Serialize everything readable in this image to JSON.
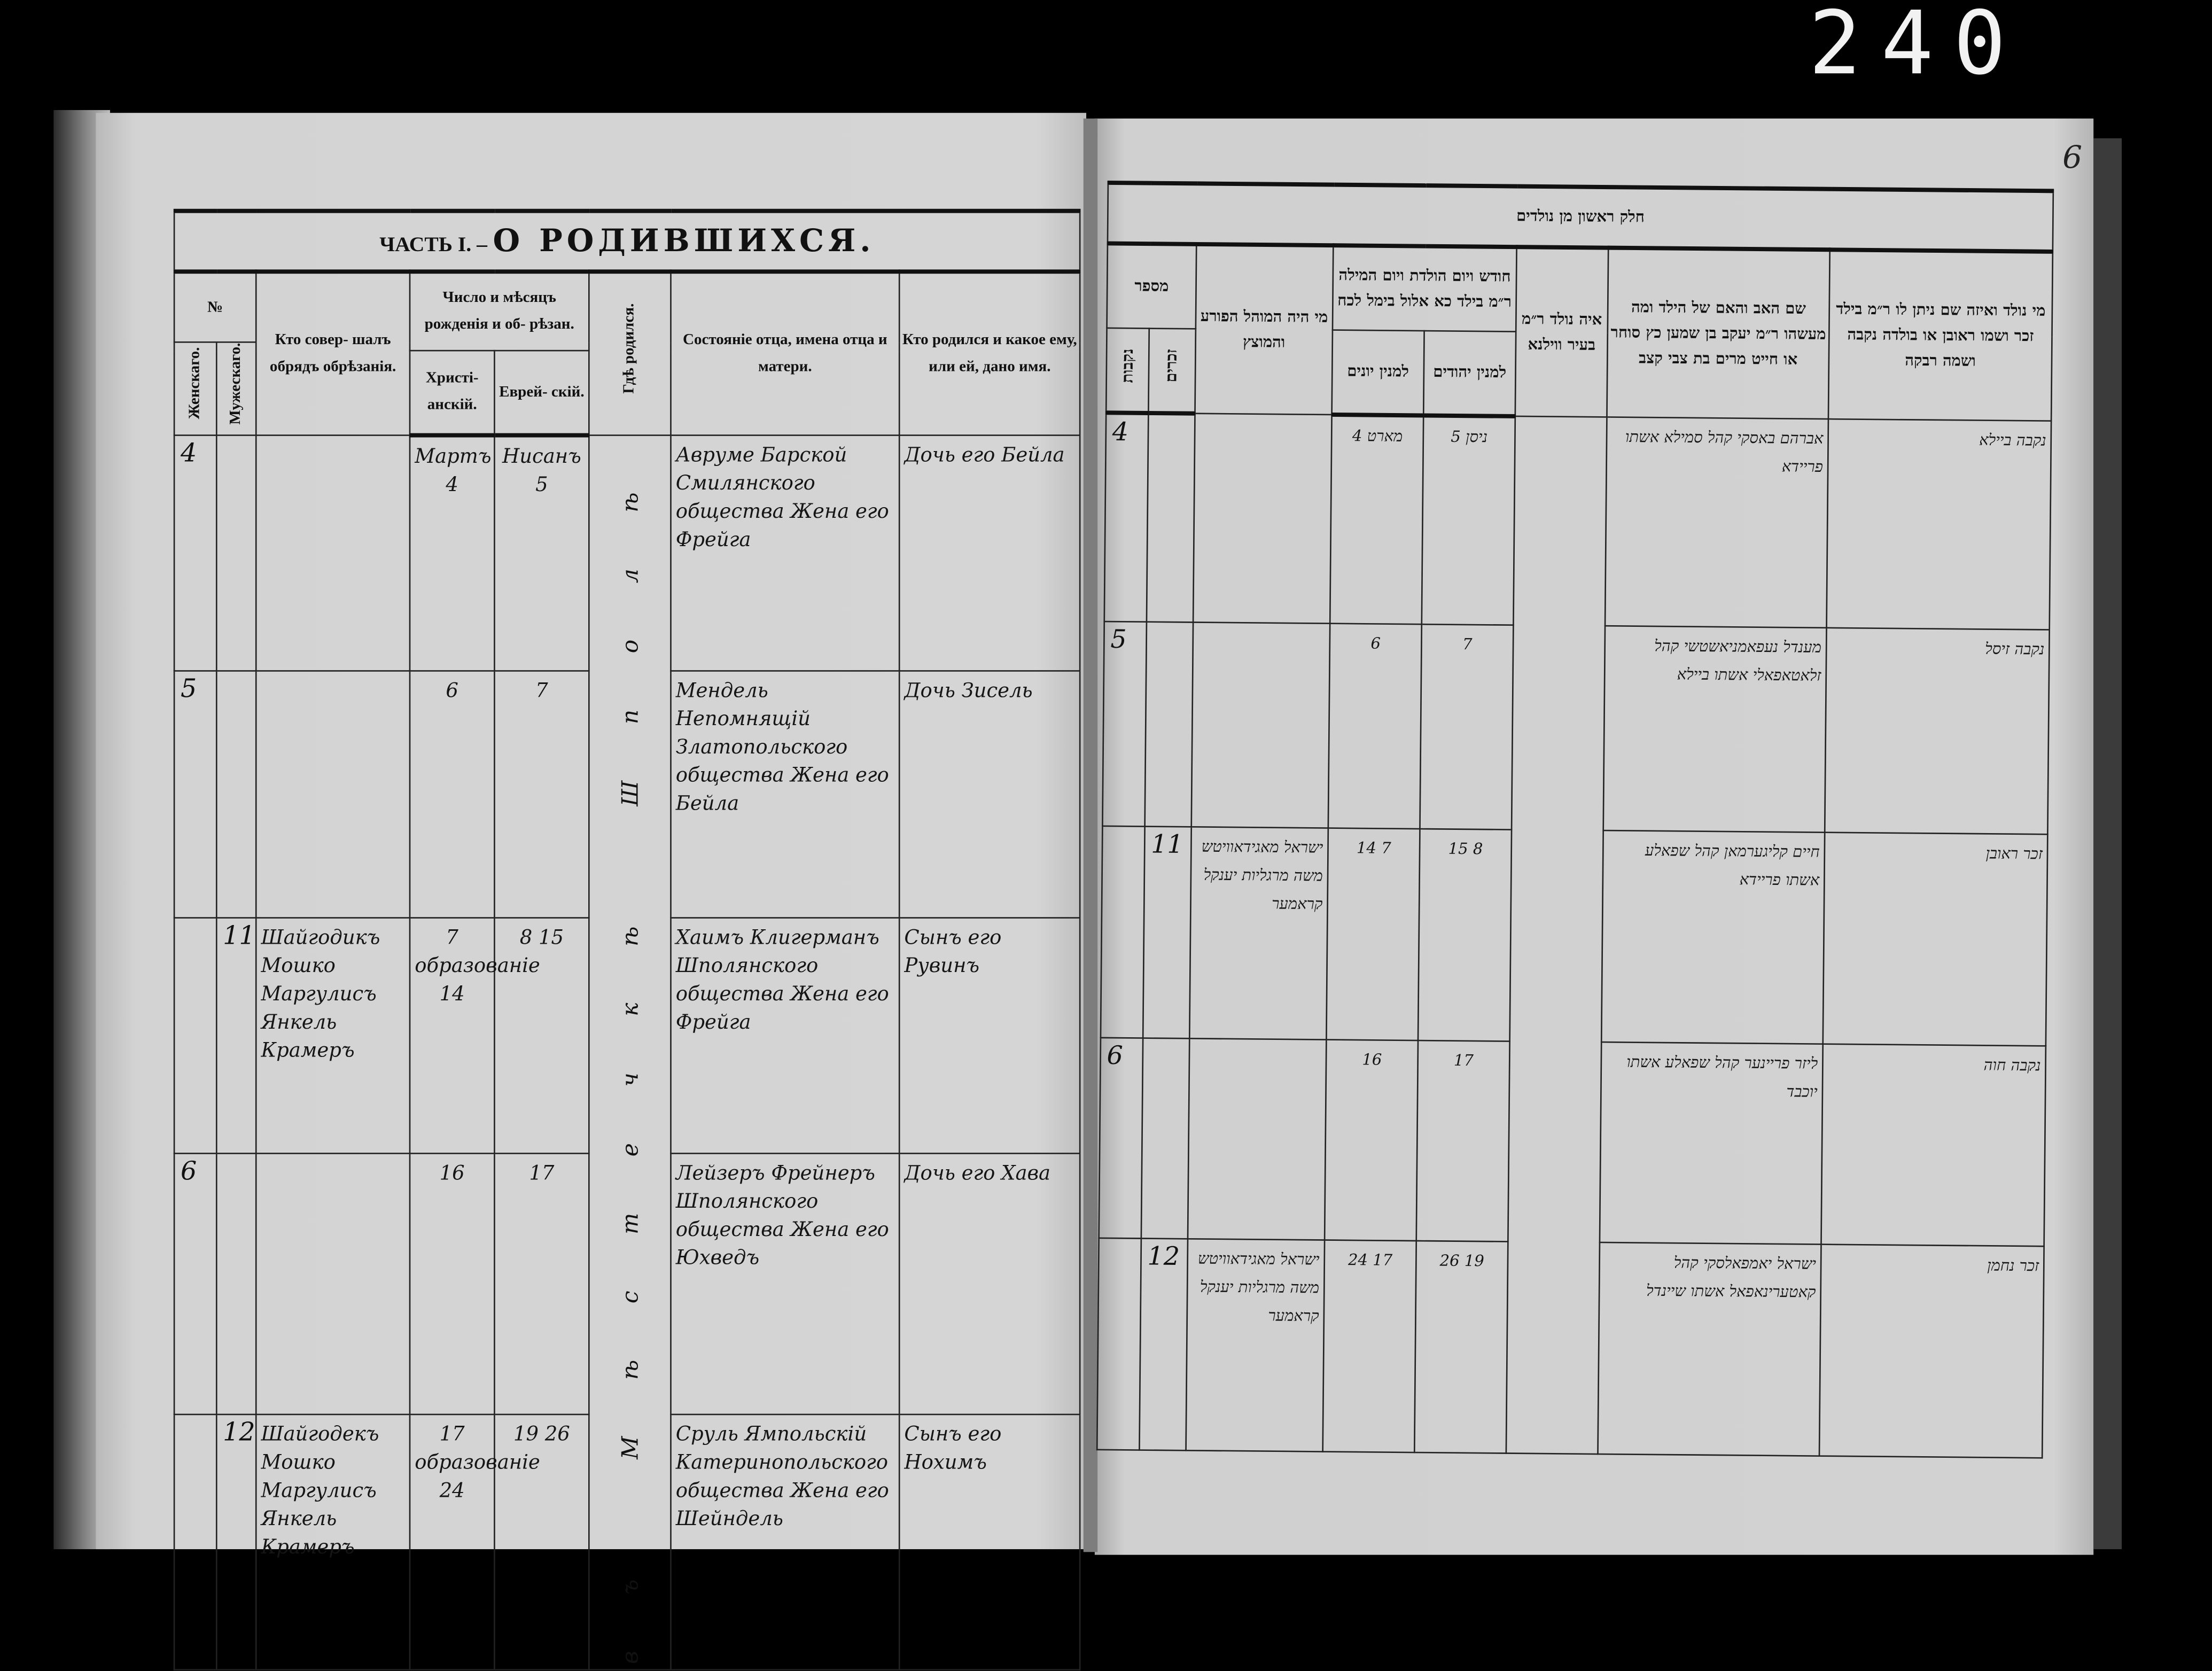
{
  "archive_stamp": "240",
  "folio_number": "6",
  "left_page": {
    "title_prefix": "ЧАСТЬ I. –",
    "title": "О РОДИВШИХСЯ.",
    "headers": {
      "number": "№",
      "female": "Женскаго.",
      "male": "Мужескаго.",
      "mohel": "Кто совер- шалъ обрядъ обрѣзанія.",
      "date": "Число и мѣсяцъ рожденія и об- рѣзан.",
      "christian": "Христі- анскій.",
      "jewish": "Еврей- скій.",
      "place": "Гдѣ родился.",
      "parents": "Состояніе отца, имена отца и матери.",
      "child": "Кто родился и какое ему, или ей, дано имя."
    },
    "place_of_birth": "въ Мѣстечкѣ Шполѣ",
    "rows": [
      {
        "female": "4",
        "male": "",
        "mohel": "",
        "christian": "Мартъ 4",
        "jewish": "Нисанъ 5",
        "parents": "Авруме Барской Смилянского общества Жена его Фрейга",
        "child": "Дочь его Бейла"
      },
      {
        "female": "5",
        "male": "",
        "mohel": "",
        "christian": "6",
        "jewish": "7",
        "parents": "Мендель Непомнящій Златопольского общества Жена его Бейла",
        "child": "Дочь Зисель"
      },
      {
        "female": "",
        "male": "11",
        "mohel": "Шайгодикъ Мошко Маргулисъ Янкель Крамеръ",
        "christian": "7 образованіе 14",
        "jewish": "8 15",
        "parents": "Хаимъ Клигерманъ Шполянского общества Жена его Фрейга",
        "child": "Сынъ его Рувинъ"
      },
      {
        "female": "6",
        "male": "",
        "mohel": "",
        "christian": "16",
        "jewish": "17",
        "parents": "Лейзеръ Фрейнеръ Шполянского общества Жена его Юхведъ",
        "child": "Дочь его Хава"
      },
      {
        "female": "",
        "male": "12",
        "mohel": "Шайгодекъ Мошко Маргулисъ Янкель Крамеръ",
        "christian": "17 образованіе 24",
        "jewish": "19 26",
        "parents": "Сруль Ямпольскій Катеринопольского общества Жена его Шейндель",
        "child": "Сынъ его Нохимъ"
      }
    ]
  },
  "right_page": {
    "title": "חלק ראשון מן נולדים",
    "headers": {
      "number": "מספר",
      "female": "נקבות",
      "male": "זכרים",
      "mohel": "מי היה המוהל הפורע והמוצץ",
      "date": "חודש ויום הולדת ויום המילה ר״מ בילד כא אלול בימל לכח",
      "gentile": "למנין יונים",
      "jewish": "למנין יהודים",
      "place": "איה נולד ר״מ בעיר ווילנא",
      "parents": "שם האב והאם של הילד ומה מעשהו ר״מ יעקב בן שמען כץ סוחר או חייט מרים בת צבי קצב",
      "child": "מי נולד ואיזה שם ניתן לו ר״מ בילד זכר ושמו ראובן או בולדה נקבה ושמה רבקה"
    },
    "rows": [
      {
        "female": "4",
        "male": "",
        "mohel": "",
        "gentile": "מארט 4",
        "jewish": "ניסן 5",
        "parents": "אברהם באסקי קהל סמילא אשתו פריידא",
        "child": "נקבה ביילא"
      },
      {
        "female": "5",
        "male": "",
        "mohel": "",
        "gentile": "6",
        "jewish": "7",
        "parents": "מענדל נעפאמניאשטשי קהל זלאטאפאלי אשתו ביילא",
        "child": "נקבה זיסל"
      },
      {
        "female": "",
        "male": "11",
        "mohel": "ישראל מאגידאוויטש משה מרגליות יענקל קראמער",
        "gentile": "7 14",
        "jewish": "8 15",
        "parents": "חיים קליגערמאן קהל שפאלע אשתו פריידא",
        "child": "זכר ראובן"
      },
      {
        "female": "6",
        "male": "",
        "mohel": "",
        "gentile": "16",
        "jewish": "17",
        "parents": "ליזר פריינער קהל שפאלע אשתו יוכבד",
        "child": "נקבה חוה"
      },
      {
        "female": "",
        "male": "12",
        "mohel": "ישראל מאגידאוויטש משה מרגליות יענקל קראמער",
        "gentile": "17 24",
        "jewish": "19 26",
        "parents": "ישראל יאמפאלסקי קהל קאטערינאפאל אשתו שיינדל",
        "child": "זכר נחמן"
      }
    ]
  }
}
